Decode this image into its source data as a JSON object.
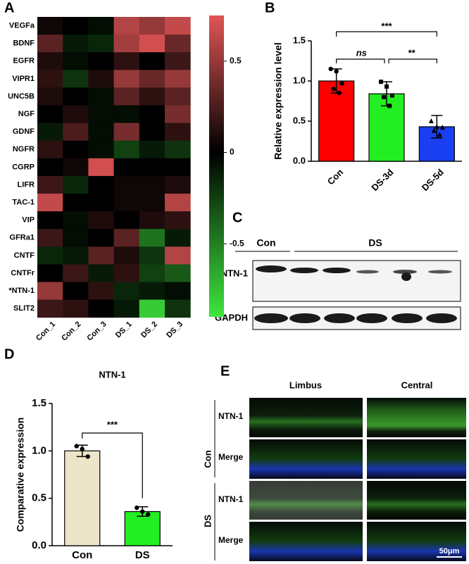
{
  "panel_labels": [
    "A",
    "B",
    "C",
    "D",
    "E"
  ],
  "chart_data": [
    {
      "type": "heatmap",
      "rows": [
        "VEGFa",
        "BDNF",
        "EGFR",
        "VIPR1",
        "UNC5B",
        "NGF",
        "GDNF",
        "NGFR",
        "CGRP",
        "LIFR",
        "TAC-1",
        "VIP",
        "GFRa1",
        "CNTF",
        "CNTFr",
        "*NTN-1",
        "SLIT2"
      ],
      "columns": [
        "Con_1",
        "Con_2",
        "Con_3",
        "DS_1",
        "DS_2",
        "DS_3"
      ],
      "values": [
        [
          0.05,
          0.0,
          -0.05,
          0.6,
          0.5,
          0.65
        ],
        [
          0.3,
          -0.1,
          -0.15,
          0.55,
          0.7,
          0.35
        ],
        [
          0.1,
          -0.05,
          0.0,
          0.15,
          0.0,
          0.2
        ],
        [
          0.15,
          -0.2,
          0.1,
          0.5,
          0.35,
          0.5
        ],
        [
          0.1,
          0.0,
          -0.05,
          0.3,
          0.15,
          0.3
        ],
        [
          0.0,
          0.1,
          -0.05,
          -0.05,
          0.0,
          0.4
        ],
        [
          -0.1,
          0.25,
          -0.05,
          0.4,
          0.0,
          0.15
        ],
        [
          0.15,
          0.0,
          -0.05,
          -0.25,
          -0.1,
          -0.2
        ],
        [
          0.0,
          0.05,
          0.7,
          0.0,
          0.0,
          0.0
        ],
        [
          0.2,
          -0.15,
          0.0,
          0.05,
          0.05,
          0.1
        ],
        [
          0.65,
          0.0,
          0.0,
          0.05,
          0.05,
          0.6
        ],
        [
          0.0,
          -0.05,
          0.1,
          0.0,
          0.1,
          0.15
        ],
        [
          0.2,
          -0.05,
          0.0,
          0.3,
          -0.45,
          -0.1
        ],
        [
          -0.15,
          -0.1,
          0.3,
          0.1,
          -0.2,
          0.6
        ],
        [
          0.0,
          0.2,
          -0.1,
          0.15,
          -0.25,
          -0.35
        ],
        [
          0.5,
          0.0,
          0.15,
          -0.15,
          -0.1,
          -0.05
        ],
        [
          0.2,
          0.15,
          0.0,
          -0.1,
          -0.8,
          -0.2
        ]
      ],
      "zlim": [
        -0.9,
        0.75
      ],
      "zticks": [
        0.5,
        0,
        -0.5
      ],
      "colormap": [
        "#3ee63e",
        "#000000",
        "#e05555"
      ]
    },
    {
      "type": "bar",
      "categories": [
        "Con",
        "DS-3d",
        "DS-5d"
      ],
      "values": [
        1.0,
        0.84,
        0.43
      ],
      "errors": [
        0.15,
        0.15,
        0.14
      ],
      "colors": [
        "#ff0000",
        "#22ee22",
        "#1a3ff0"
      ],
      "points": [
        [
          1.15,
          1.12,
          0.97,
          0.9,
          0.85
        ],
        [
          0.99,
          0.93,
          0.82,
          0.8,
          0.69
        ],
        [
          0.5,
          0.43,
          0.42,
          0.38,
          0.33
        ]
      ],
      "ylabel": "Relative expression level",
      "ylim": [
        0,
        1.5
      ],
      "yticks": [
        {
          "value": 0,
          "label": "0.0"
        },
        {
          "value": 0.5,
          "label": "0.5"
        },
        {
          "value": 1,
          "label": "1.0"
        },
        {
          "value": 1.5,
          "label": "1.5"
        }
      ],
      "significance": [
        "***",
        "ns",
        "**"
      ]
    },
    {
      "type": "bar",
      "title": "NTN-1",
      "categories": [
        "Con",
        "DS"
      ],
      "values": [
        1.0,
        0.36
      ],
      "errors": [
        0.06,
        0.05
      ],
      "colors": [
        "#ede5c8",
        "#22ee22"
      ],
      "points": [
        [
          1.05,
          1.02,
          0.94
        ],
        [
          0.4,
          0.36,
          0.33
        ]
      ],
      "ylabel": "Comparative expression",
      "ylim": [
        0,
        1.5
      ],
      "yticks": [
        {
          "value": 0,
          "label": "0.0"
        },
        {
          "value": 0.5,
          "label": "0.5"
        },
        {
          "value": 1,
          "label": "1.0"
        },
        {
          "value": 1.5,
          "label": "1.5"
        }
      ],
      "significance": [
        "***"
      ]
    }
  ],
  "blot": {
    "groups": [
      "Con",
      "DS"
    ],
    "proteins": [
      "NTN-1",
      "GAPDH"
    ]
  },
  "microscopy": {
    "columns": [
      "Limbus",
      "Central"
    ],
    "groups": [
      "Con",
      "DS"
    ],
    "channels": [
      "NTN-1",
      "Merge",
      "NTN-1",
      "Merge"
    ],
    "scale_bar": "50μm"
  }
}
